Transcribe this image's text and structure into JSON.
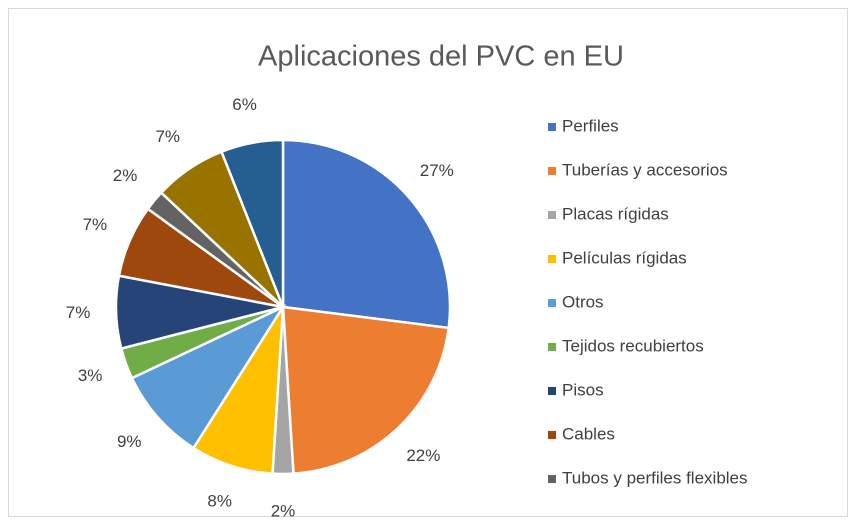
{
  "chart_data": {
    "type": "pie",
    "title": "Aplicaciones del PVC en EU",
    "categories": [
      "Perfiles",
      "Tuberías y accesorios",
      "Placas rígidas",
      "Películas rígidas",
      "Otros",
      "Tejidos recubiertos",
      "Pisos",
      "Cables",
      "Tubos y perfiles flexibles",
      null,
      null
    ],
    "values": [
      27,
      22,
      2,
      8,
      9,
      3,
      7,
      7,
      2,
      7,
      6
    ],
    "value_labels": [
      "27%",
      "22%",
      "2%",
      "8%",
      "9%",
      "3%",
      "7%",
      "7%",
      "2%",
      "7%",
      "6%"
    ],
    "colors": [
      "#4472c4",
      "#ed7d31",
      "#a5a5a5",
      "#ffc000",
      "#5b9bd5",
      "#70ad47",
      "#264478",
      "#9e480e",
      "#636363",
      "#997300",
      "#255e91"
    ],
    "legend": "right"
  }
}
